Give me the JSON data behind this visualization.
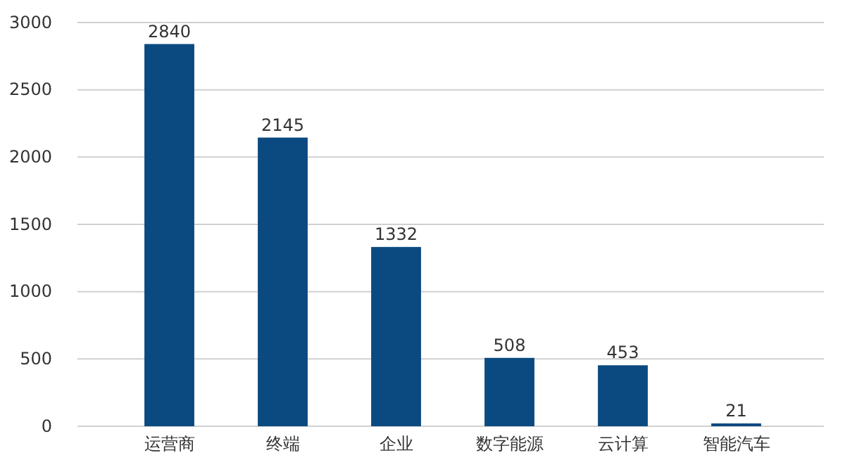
{
  "chart_data": {
    "type": "bar",
    "categories": [
      "运营商",
      "终端",
      "企业",
      "数字能源",
      "云计算",
      "智能汽车"
    ],
    "values": [
      2840,
      2145,
      1332,
      508,
      453,
      21
    ],
    "color": "#0b4a80",
    "ylim": [
      0,
      3000
    ],
    "yticks": [
      0,
      500,
      1000,
      1500,
      2000,
      2500,
      3000
    ],
    "grid": "y",
    "data_labels": true
  }
}
